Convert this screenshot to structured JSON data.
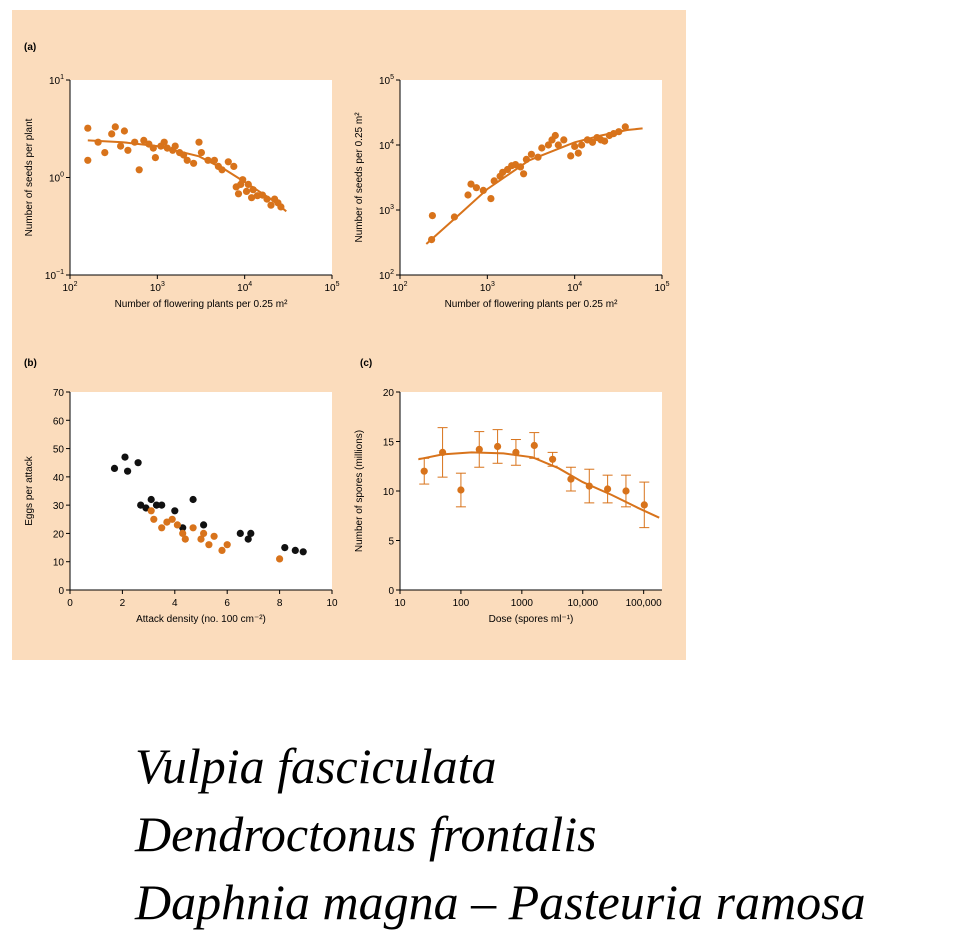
{
  "colors": {
    "panel_background": "#fbdcbc",
    "plot_background": "#ffffff",
    "series_orange": "#d8731b",
    "series_black": "#111111"
  },
  "species": [
    "Vulpia fasciculata",
    "Dendroctonus frontalis",
    "Daphnia magna – Pasteuria ramosa"
  ],
  "chart_data": [
    {
      "id": "a_left",
      "panel_label": "(a)",
      "type": "scatter",
      "xlabel": "Number of flowering plants per 0.25 m²",
      "ylabel": "Number of seeds per plant",
      "xscale": "log",
      "yscale": "log",
      "xlim": [
        100,
        100000
      ],
      "ylim": [
        0.1,
        10
      ],
      "x_ticks": [
        {
          "v": 100,
          "base": "10",
          "exp": "2"
        },
        {
          "v": 1000,
          "base": "10",
          "exp": "3"
        },
        {
          "v": 10000,
          "base": "10",
          "exp": "4"
        },
        {
          "v": 100000,
          "base": "10",
          "exp": "5"
        }
      ],
      "y_ticks": [
        {
          "v": 0.1,
          "base": "10",
          "exp": "−1"
        },
        {
          "v": 1,
          "base": "10",
          "exp": "0"
        },
        {
          "v": 10,
          "base": "10",
          "exp": "1"
        }
      ],
      "grid": false,
      "points": [
        [
          160,
          3.2
        ],
        [
          160,
          1.5
        ],
        [
          210,
          2.3
        ],
        [
          250,
          1.8
        ],
        [
          300,
          2.8
        ],
        [
          330,
          3.3
        ],
        [
          380,
          2.1
        ],
        [
          420,
          3.0
        ],
        [
          460,
          1.9
        ],
        [
          550,
          2.3
        ],
        [
          620,
          1.2
        ],
        [
          700,
          2.4
        ],
        [
          800,
          2.2
        ],
        [
          900,
          2.0
        ],
        [
          950,
          1.6
        ],
        [
          1100,
          2.1
        ],
        [
          1200,
          2.3
        ],
        [
          1300,
          2.0
        ],
        [
          1500,
          1.9
        ],
        [
          1600,
          2.1
        ],
        [
          1800,
          1.8
        ],
        [
          2000,
          1.7
        ],
        [
          2200,
          1.5
        ],
        [
          2600,
          1.4
        ],
        [
          3000,
          2.3
        ],
        [
          3200,
          1.8
        ],
        [
          3800,
          1.5
        ],
        [
          4500,
          1.5
        ],
        [
          5000,
          1.3
        ],
        [
          5500,
          1.2
        ],
        [
          6500,
          1.45
        ],
        [
          7500,
          1.3
        ],
        [
          8000,
          0.8
        ],
        [
          8500,
          0.68
        ],
        [
          9000,
          0.85
        ],
        [
          9500,
          0.95
        ],
        [
          10500,
          0.72
        ],
        [
          11000,
          0.85
        ],
        [
          12000,
          0.62
        ],
        [
          12500,
          0.75
        ],
        [
          14000,
          0.65
        ],
        [
          16000,
          0.66
        ],
        [
          18000,
          0.6
        ],
        [
          20000,
          0.52
        ],
        [
          22000,
          0.6
        ],
        [
          24000,
          0.55
        ],
        [
          26000,
          0.5
        ]
      ],
      "fit_line": [
        [
          160,
          2.4
        ],
        [
          400,
          2.3
        ],
        [
          1000,
          2.1
        ],
        [
          3000,
          1.65
        ],
        [
          6000,
          1.2
        ],
        [
          10000,
          0.9
        ],
        [
          20000,
          0.6
        ],
        [
          30000,
          0.45
        ]
      ]
    },
    {
      "id": "a_right",
      "panel_label": "",
      "type": "scatter",
      "xlabel": "Number of flowering plants per 0.25 m²",
      "ylabel": "Number of seeds per 0.25 m²",
      "xscale": "log",
      "yscale": "log",
      "xlim": [
        100,
        100000
      ],
      "ylim": [
        100,
        100000
      ],
      "x_ticks": [
        {
          "v": 100,
          "base": "10",
          "exp": "2"
        },
        {
          "v": 1000,
          "base": "10",
          "exp": "3"
        },
        {
          "v": 10000,
          "base": "10",
          "exp": "4"
        },
        {
          "v": 100000,
          "base": "10",
          "exp": "5"
        }
      ],
      "y_ticks": [
        {
          "v": 100,
          "base": "10",
          "exp": "2"
        },
        {
          "v": 1000,
          "base": "10",
          "exp": "3"
        },
        {
          "v": 10000,
          "base": "10",
          "exp": "4"
        },
        {
          "v": 100000,
          "base": "10",
          "exp": "5"
        }
      ],
      "grid": false,
      "points": [
        [
          230,
          350
        ],
        [
          235,
          820
        ],
        [
          420,
          780
        ],
        [
          600,
          1700
        ],
        [
          650,
          2500
        ],
        [
          750,
          2200
        ],
        [
          900,
          2000
        ],
        [
          1100,
          1500
        ],
        [
          1200,
          2800
        ],
        [
          1400,
          3300
        ],
        [
          1500,
          3800
        ],
        [
          1700,
          4200
        ],
        [
          1900,
          4800
        ],
        [
          2100,
          5000
        ],
        [
          2400,
          4600
        ],
        [
          2600,
          3600
        ],
        [
          2800,
          6000
        ],
        [
          3200,
          7200
        ],
        [
          3800,
          6500
        ],
        [
          4200,
          9000
        ],
        [
          5000,
          10000
        ],
        [
          5500,
          12000
        ],
        [
          6000,
          14000
        ],
        [
          6500,
          10000
        ],
        [
          7500,
          12000
        ],
        [
          9000,
          6800
        ],
        [
          10000,
          9500
        ],
        [
          11000,
          7500
        ],
        [
          12000,
          10000
        ],
        [
          14000,
          12000
        ],
        [
          16000,
          11000
        ],
        [
          18000,
          13000
        ],
        [
          20000,
          12000
        ],
        [
          22000,
          11500
        ],
        [
          25000,
          14000
        ],
        [
          28000,
          15000
        ],
        [
          32000,
          16000
        ],
        [
          38000,
          19000
        ]
      ],
      "fit_line": [
        [
          200,
          300
        ],
        [
          500,
          900
        ],
        [
          1000,
          2100
        ],
        [
          3000,
          5800
        ],
        [
          10000,
          11000
        ],
        [
          20000,
          14000
        ],
        [
          40000,
          17000
        ],
        [
          60000,
          18000
        ]
      ]
    },
    {
      "id": "b",
      "panel_label": "(b)",
      "type": "scatter",
      "xlabel": "Attack density (no. 100 cm⁻²)",
      "ylabel": "Eggs per attack",
      "xscale": "linear",
      "yscale": "linear",
      "xlim": [
        0,
        10
      ],
      "ylim": [
        0,
        70
      ],
      "x_ticks": [
        0,
        2,
        4,
        6,
        8,
        10
      ],
      "y_ticks": [
        0,
        10,
        20,
        30,
        40,
        50,
        60,
        70
      ],
      "grid": false,
      "series": [
        {
          "color_key": "series_black",
          "points": [
            [
              1.7,
              43
            ],
            [
              2.1,
              47
            ],
            [
              2.2,
              42
            ],
            [
              2.6,
              45
            ],
            [
              2.7,
              30
            ],
            [
              2.9,
              29
            ],
            [
              3.1,
              32
            ],
            [
              3.3,
              30
            ],
            [
              3.5,
              30
            ],
            [
              4.0,
              28
            ],
            [
              4.3,
              22
            ],
            [
              4.7,
              32
            ],
            [
              5.1,
              23
            ],
            [
              6.5,
              20
            ],
            [
              6.8,
              18
            ],
            [
              6.9,
              20
            ],
            [
              8.2,
              15
            ],
            [
              8.6,
              14
            ],
            [
              8.9,
              13.5
            ]
          ]
        },
        {
          "color_key": "series_orange",
          "points": [
            [
              3.1,
              28
            ],
            [
              3.2,
              25
            ],
            [
              3.5,
              22
            ],
            [
              3.7,
              24
            ],
            [
              3.9,
              25
            ],
            [
              4.1,
              23
            ],
            [
              4.3,
              20
            ],
            [
              4.4,
              18
            ],
            [
              4.7,
              22
            ],
            [
              5.0,
              18
            ],
            [
              5.1,
              20
            ],
            [
              5.3,
              16
            ],
            [
              5.5,
              19
            ],
            [
              5.8,
              14
            ],
            [
              6.0,
              16
            ],
            [
              8.0,
              11
            ]
          ]
        }
      ]
    },
    {
      "id": "c",
      "panel_label": "(c)",
      "type": "scatter",
      "xlabel": "Dose (spores ml⁻¹)",
      "ylabel": "Number of spores (millions)",
      "xscale": "log",
      "yscale": "linear",
      "xlim": [
        10,
        200000
      ],
      "ylim": [
        0,
        20
      ],
      "x_ticks": [
        {
          "v": 10,
          "label": "10"
        },
        {
          "v": 100,
          "label": "100"
        },
        {
          "v": 1000,
          "label": "1000"
        },
        {
          "v": 10000,
          "label": "10,000"
        },
        {
          "v": 100000,
          "label": "100,000"
        }
      ],
      "y_ticks": [
        0,
        5,
        10,
        15,
        20
      ],
      "grid": false,
      "points": [
        {
          "x": 25,
          "y": 12.0,
          "err": 1.3
        },
        {
          "x": 50,
          "y": 13.9,
          "err": 2.5
        },
        {
          "x": 100,
          "y": 10.1,
          "err": 1.7
        },
        {
          "x": 200,
          "y": 14.2,
          "err": 1.8
        },
        {
          "x": 400,
          "y": 14.5,
          "err": 1.7
        },
        {
          "x": 800,
          "y": 13.9,
          "err": 1.3
        },
        {
          "x": 1600,
          "y": 14.6,
          "err": 1.3
        },
        {
          "x": 3200,
          "y": 13.2,
          "err": 0.7
        },
        {
          "x": 6400,
          "y": 11.2,
          "err": 1.2
        },
        {
          "x": 12800,
          "y": 10.5,
          "err": 1.7
        },
        {
          "x": 25600,
          "y": 10.2,
          "err": 1.4
        },
        {
          "x": 51200,
          "y": 10.0,
          "err": 1.6
        },
        {
          "x": 102400,
          "y": 8.6,
          "err": 2.3
        }
      ],
      "fit_line": [
        [
          20,
          13.2
        ],
        [
          50,
          13.7
        ],
        [
          150,
          13.9
        ],
        [
          500,
          13.8
        ],
        [
          1500,
          13.4
        ],
        [
          4000,
          12.3
        ],
        [
          10000,
          10.9
        ],
        [
          30000,
          9.6
        ],
        [
          80000,
          8.3
        ],
        [
          180000,
          7.3
        ]
      ]
    }
  ]
}
